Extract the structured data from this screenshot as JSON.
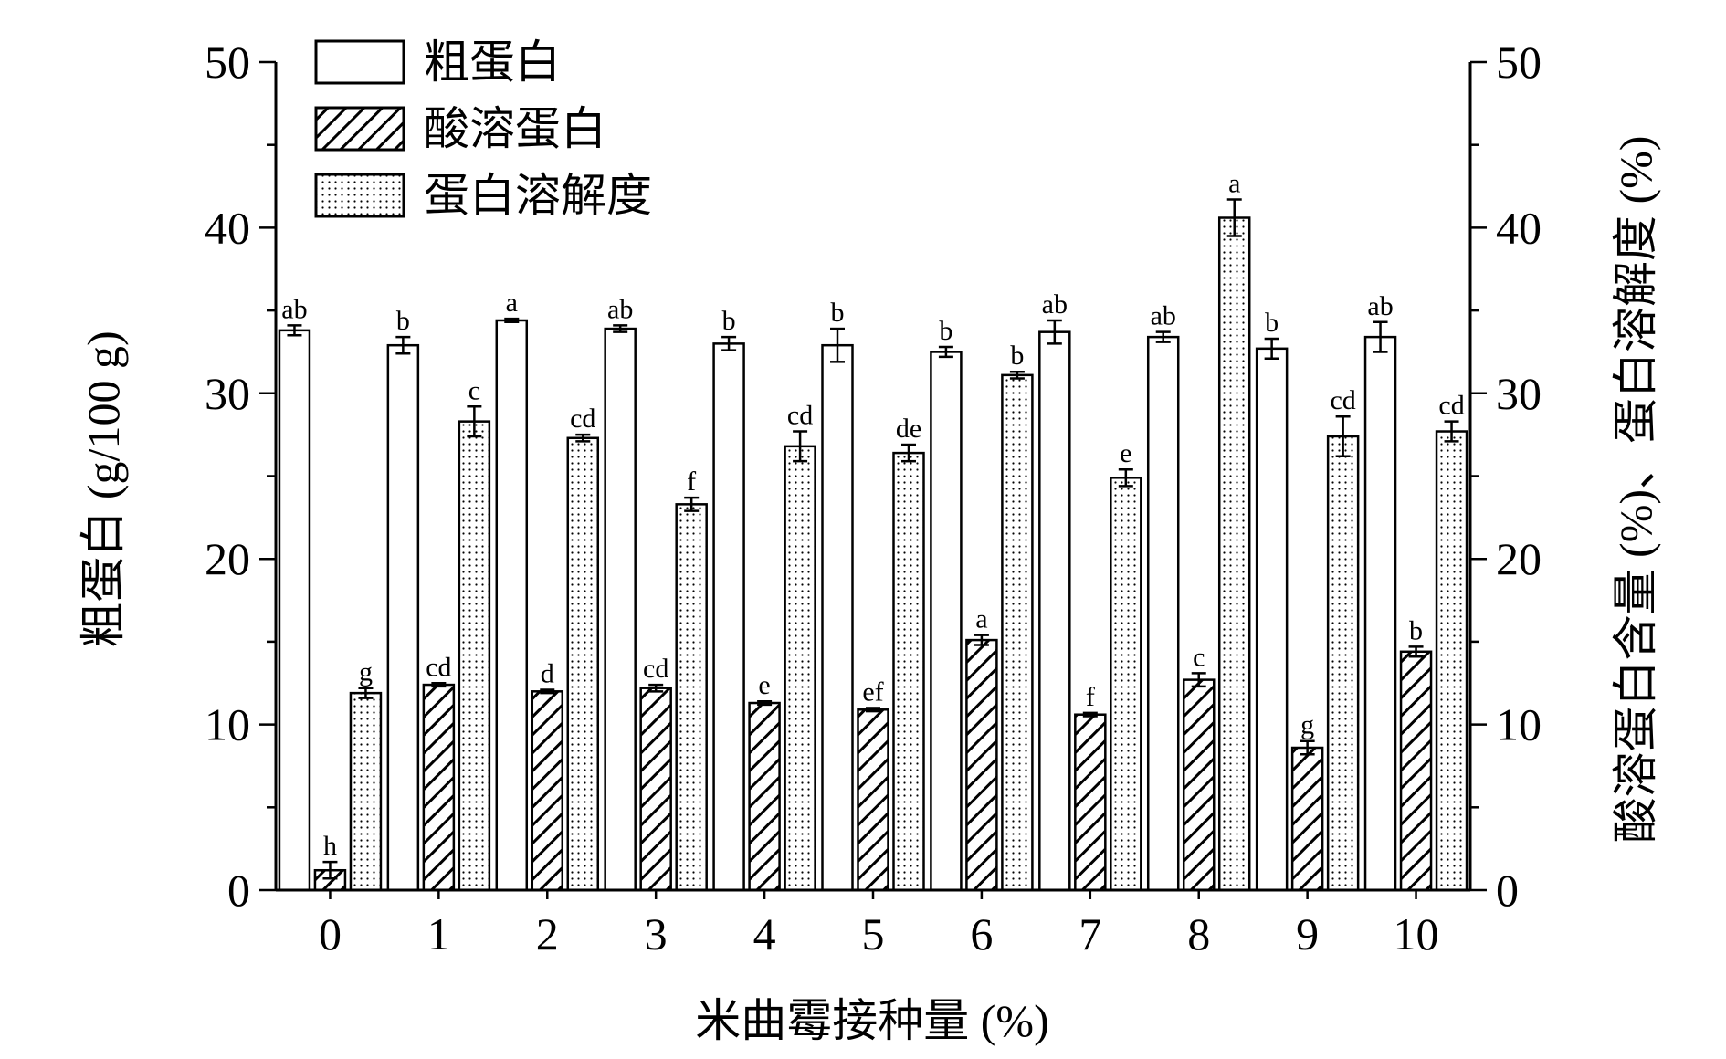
{
  "chart_data": {
    "type": "bar",
    "xlabel": "米曲霉接种量 (%)",
    "ylabel_left": "粗蛋白 (g/100 g)",
    "ylabel_right": "酸溶蛋白含量 (%)、蛋白溶解度 (%)",
    "ylim_left": [
      0,
      50
    ],
    "ylim_right": [
      0,
      50
    ],
    "yticks": [
      "0",
      "10",
      "20",
      "30",
      "40",
      "50"
    ],
    "categories": [
      "0",
      "1",
      "2",
      "3",
      "4",
      "5",
      "6",
      "7",
      "8",
      "9",
      "10"
    ],
    "legend_position": "top-left",
    "grid": false,
    "series": [
      {
        "name": "粗蛋白",
        "axis": "left",
        "pattern": "open",
        "values": [
          33.8,
          32.9,
          34.4,
          33.9,
          33.0,
          32.9,
          32.5,
          33.7,
          33.4,
          32.7,
          33.4
        ],
        "errors": [
          0.3,
          0.5,
          0.1,
          0.2,
          0.4,
          1.0,
          0.3,
          0.7,
          0.3,
          0.6,
          0.9
        ],
        "letters": [
          "ab",
          "b",
          "a",
          "ab",
          "b",
          "b",
          "b",
          "ab",
          "ab",
          "b",
          "ab"
        ]
      },
      {
        "name": "酸溶蛋白",
        "axis": "right",
        "pattern": "hatch",
        "values": [
          1.2,
          12.4,
          12.0,
          12.2,
          11.3,
          10.9,
          15.1,
          10.6,
          12.7,
          8.6,
          14.4
        ],
        "errors": [
          0.5,
          0.1,
          0.1,
          0.2,
          0.1,
          0.1,
          0.3,
          0.1,
          0.4,
          0.4,
          0.3
        ],
        "letters": [
          "h",
          "cd",
          "d",
          "cd",
          "e",
          "ef",
          "a",
          "f",
          "c",
          "g",
          "b"
        ]
      },
      {
        "name": "蛋白溶解度",
        "axis": "right",
        "pattern": "dots",
        "values": [
          11.9,
          28.3,
          27.3,
          23.3,
          26.8,
          26.4,
          31.1,
          24.9,
          40.6,
          27.4,
          27.7
        ],
        "errors": [
          0.3,
          0.9,
          0.2,
          0.4,
          0.9,
          0.5,
          0.2,
          0.5,
          1.1,
          1.2,
          0.6
        ],
        "letters": [
          "g",
          "c",
          "cd",
          "f",
          "cd",
          "de",
          "b",
          "e",
          "a",
          "cd",
          "cd"
        ]
      }
    ]
  }
}
